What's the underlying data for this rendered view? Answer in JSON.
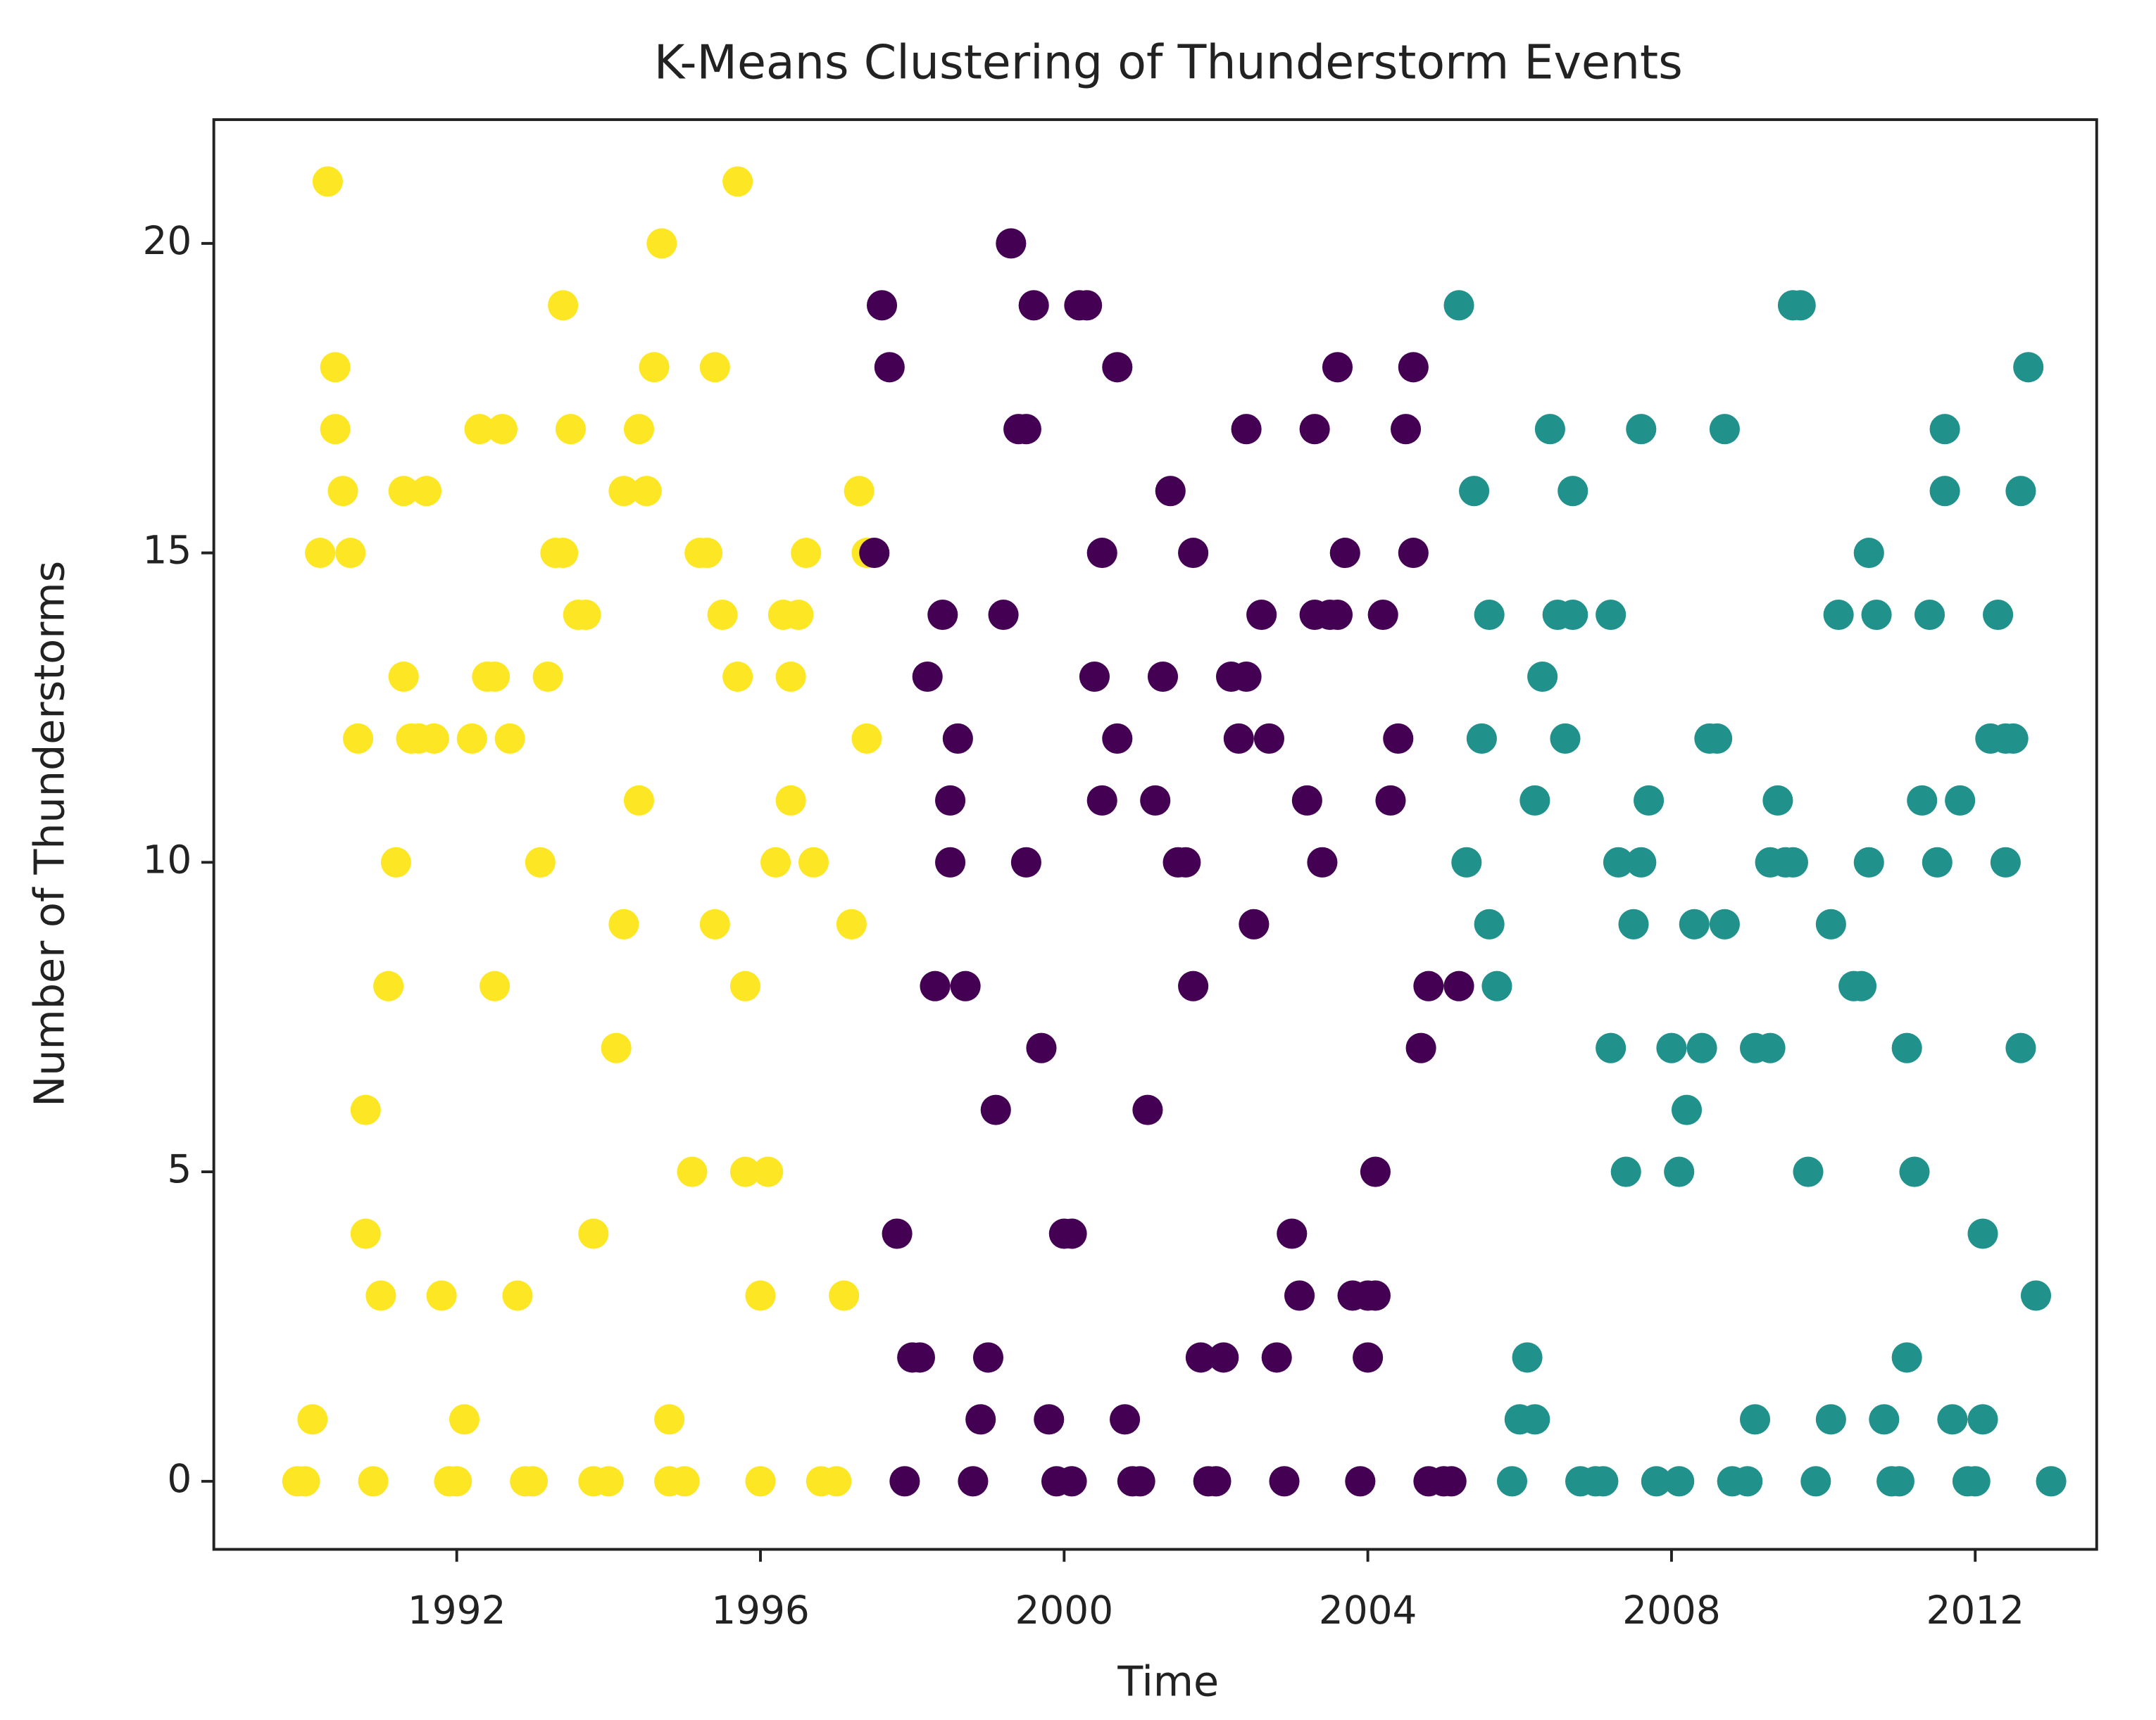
{
  "chart_data": {
    "type": "scatter",
    "title": "K-Means Clustering of Thunderstorm Events",
    "x_label": "Time",
    "y_label": "Number of Thunderstorms",
    "xlim": [
      1988.8,
      2013.6
    ],
    "ylim": [
      -1.1,
      22.0
    ],
    "xticks": [
      1992,
      1996,
      2000,
      2004,
      2008,
      2012
    ],
    "yticks": [
      0,
      5,
      10,
      15,
      20
    ],
    "grid": false,
    "series": [
      {
        "color": "#fde725",
        "x": [
          1990.3,
          1990.1,
          1989.9,
          1990.0,
          1990.2,
          1990.4,
          1990.4,
          1990.5,
          1990.6,
          1990.7,
          1990.8,
          1990.8,
          1990.9,
          1991.0,
          1991.1,
          1991.2,
          1991.3,
          1991.3,
          1991.4,
          1991.5,
          1991.6,
          1991.7,
          1991.8,
          1991.9,
          1992.0,
          1992.1,
          1992.2,
          1992.3,
          1992.4,
          1992.5,
          1992.5,
          1992.6,
          1992.7,
          1992.8,
          1992.9,
          1993.0,
          1993.1,
          1993.2,
          1993.3,
          1993.4,
          1993.4,
          1993.5,
          1993.6,
          1993.7,
          1993.8,
          1993.8,
          1994.0,
          1994.2,
          1994.1,
          1994.2,
          1994.4,
          1994.4,
          1994.5,
          1994.6,
          1994.7,
          1994.8,
          1994.8,
          1995.0,
          1995.1,
          1995.2,
          1995.3,
          1995.4,
          1995.4,
          1995.5,
          1995.7,
          1995.7,
          1995.8,
          1996.0,
          1995.8,
          1996.0,
          1996.1,
          1996.2,
          1996.3,
          1996.4,
          1996.4,
          1996.5,
          1996.6,
          1996.7,
          1996.8,
          1997.0,
          1997.1,
          1997.2,
          1997.3,
          1997.4,
          1997.4
        ],
        "values": [
          21,
          1,
          0,
          0,
          15,
          17,
          18,
          16,
          15,
          12,
          6,
          4,
          0,
          3,
          8,
          10,
          16,
          13,
          12,
          12,
          16,
          12,
          3,
          0,
          0,
          1,
          12,
          17,
          13,
          8,
          13,
          17,
          12,
          3,
          0,
          0,
          10,
          13,
          15,
          19,
          15,
          17,
          14,
          14,
          4,
          0,
          0,
          9,
          7,
          16,
          11,
          17,
          16,
          18,
          20,
          1,
          0,
          0,
          5,
          15,
          15,
          9,
          18,
          14,
          21,
          13,
          8,
          0,
          5,
          3,
          5,
          10,
          14,
          11,
          13,
          14,
          15,
          10,
          0,
          0,
          3,
          9,
          16,
          15,
          12
        ]
      },
      {
        "color": "#440154",
        "x": [
          1997.6,
          1997.7,
          1997.5,
          1997.8,
          1997.9,
          1998.0,
          1998.1,
          1998.2,
          1998.3,
          1998.4,
          1998.5,
          1998.5,
          1998.6,
          1998.7,
          1998.8,
          1998.9,
          1999.0,
          1999.1,
          1999.2,
          1999.3,
          1999.4,
          1999.5,
          1999.5,
          1999.6,
          1999.7,
          1999.8,
          1999.9,
          2000.0,
          2000.1,
          2000.1,
          2000.2,
          2000.3,
          2000.4,
          2000.5,
          2000.5,
          2000.7,
          2000.7,
          2000.8,
          2000.9,
          2001.0,
          2001.1,
          2001.2,
          2001.3,
          2001.4,
          2001.5,
          2001.6,
          2001.7,
          2001.7,
          2001.8,
          2001.9,
          2002.0,
          2002.1,
          2002.2,
          2002.3,
          2002.4,
          2002.4,
          2002.5,
          2002.6,
          2002.7,
          2002.8,
          2002.9,
          2003.0,
          2003.1,
          2003.2,
          2003.3,
          2003.3,
          2003.4,
          2003.5,
          2003.6,
          2003.6,
          2003.7,
          2003.8,
          2003.9,
          2004.0,
          2004.0,
          2004.1,
          2004.1,
          2004.2,
          2004.3,
          2004.4,
          2004.5,
          2004.6,
          2004.6,
          2004.7,
          2004.8,
          2004.8,
          2005.0,
          2005.1,
          2005.2
        ],
        "values": [
          19,
          18,
          15,
          4,
          0,
          2,
          2,
          13,
          8,
          14,
          10,
          11,
          12,
          8,
          0,
          1,
          2,
          6,
          14,
          20,
          17,
          17,
          10,
          19,
          7,
          1,
          0,
          4,
          0,
          4,
          19,
          19,
          13,
          11,
          15,
          18,
          12,
          1,
          0,
          0,
          6,
          11,
          13,
          16,
          10,
          10,
          15,
          8,
          2,
          0,
          0,
          2,
          13,
          12,
          17,
          13,
          9,
          14,
          12,
          2,
          0,
          4,
          3,
          11,
          17,
          14,
          10,
          14,
          14,
          18,
          15,
          3,
          0,
          2,
          3,
          3,
          5,
          14,
          11,
          12,
          17,
          18,
          15,
          7,
          8,
          0,
          0,
          0,
          8
        ]
      },
      {
        "color": "#21918c",
        "x": [
          2005.2,
          2005.3,
          2005.4,
          2005.5,
          2005.6,
          2005.6,
          2005.7,
          2005.9,
          2006.0,
          2006.1,
          2006.2,
          2006.2,
          2006.3,
          2006.4,
          2006.5,
          2006.6,
          2006.7,
          2006.7,
          2006.8,
          2007.0,
          2007.1,
          2007.2,
          2007.2,
          2007.3,
          2007.4,
          2007.5,
          2007.6,
          2007.6,
          2007.7,
          2007.8,
          2008.0,
          2008.1,
          2008.1,
          2008.2,
          2008.3,
          2008.4,
          2008.5,
          2008.6,
          2008.7,
          2008.7,
          2008.8,
          2009.0,
          2009.1,
          2009.1,
          2009.3,
          2009.3,
          2009.4,
          2009.5,
          2009.6,
          2009.6,
          2009.7,
          2009.8,
          2009.9,
          2010.1,
          2010.1,
          2010.2,
          2010.4,
          2010.5,
          2010.6,
          2010.6,
          2010.7,
          2010.8,
          2010.9,
          2011.0,
          2011.1,
          2011.1,
          2011.2,
          2011.3,
          2011.4,
          2011.5,
          2011.6,
          2011.6,
          2011.7,
          2011.8,
          2011.9,
          2012.0,
          2012.1,
          2012.1,
          2012.2,
          2012.3,
          2012.4,
          2012.4,
          2012.5,
          2012.6,
          2012.6,
          2012.7,
          2012.8,
          2013.0
        ],
        "values": [
          19,
          10,
          16,
          12,
          9,
          14,
          8,
          0,
          1,
          2,
          1,
          11,
          13,
          17,
          14,
          12,
          16,
          14,
          0,
          0,
          0,
          7,
          14,
          10,
          5,
          9,
          10,
          17,
          11,
          0,
          7,
          0,
          5,
          6,
          9,
          7,
          12,
          12,
          17,
          9,
          0,
          0,
          1,
          7,
          10,
          7,
          11,
          10,
          19,
          10,
          19,
          5,
          0,
          1,
          9,
          14,
          8,
          8,
          10,
          15,
          14,
          1,
          0,
          0,
          2,
          7,
          5,
          11,
          14,
          10,
          17,
          16,
          1,
          11,
          0,
          0,
          1,
          4,
          12,
          14,
          12,
          10,
          12,
          7,
          16,
          18,
          3,
          0
        ]
      }
    ]
  }
}
